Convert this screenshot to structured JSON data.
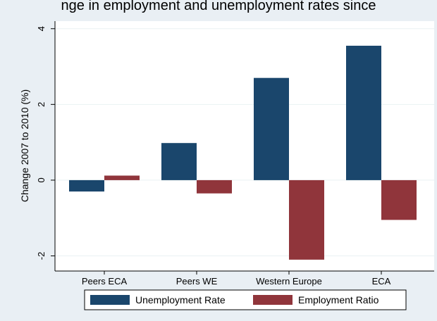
{
  "top_partial_text": "nge in employment and unemployment rates since",
  "colors": {
    "outer_background": "#E9EFF4",
    "plot_background": "#FFFFFF",
    "unemployment": "#1A466C",
    "employment": "#90353B",
    "gridline": "#EAF2F3",
    "axis": "#000000"
  },
  "chart_data": {
    "type": "bar",
    "title": "",
    "xlabel": "",
    "ylabel": "Change 2007 to 2010 (%)",
    "categories": [
      "Peers ECA",
      "Peers WE",
      "Western Europe",
      "ECA"
    ],
    "series": [
      {
        "name": "Unemployment Rate",
        "color": "#1A466C",
        "values": [
          -0.3,
          0.98,
          2.7,
          3.55
        ]
      },
      {
        "name": "Employment Ratio",
        "color": "#90353B",
        "values": [
          0.12,
          -0.35,
          -2.1,
          -1.05
        ]
      }
    ],
    "ylim": [
      -2.4,
      4.2
    ],
    "yticks": [
      -2,
      0,
      2,
      4
    ],
    "ytick_labels": [
      "-2",
      "0",
      "2",
      "4"
    ],
    "grid": true,
    "legend_position": "bottom"
  }
}
